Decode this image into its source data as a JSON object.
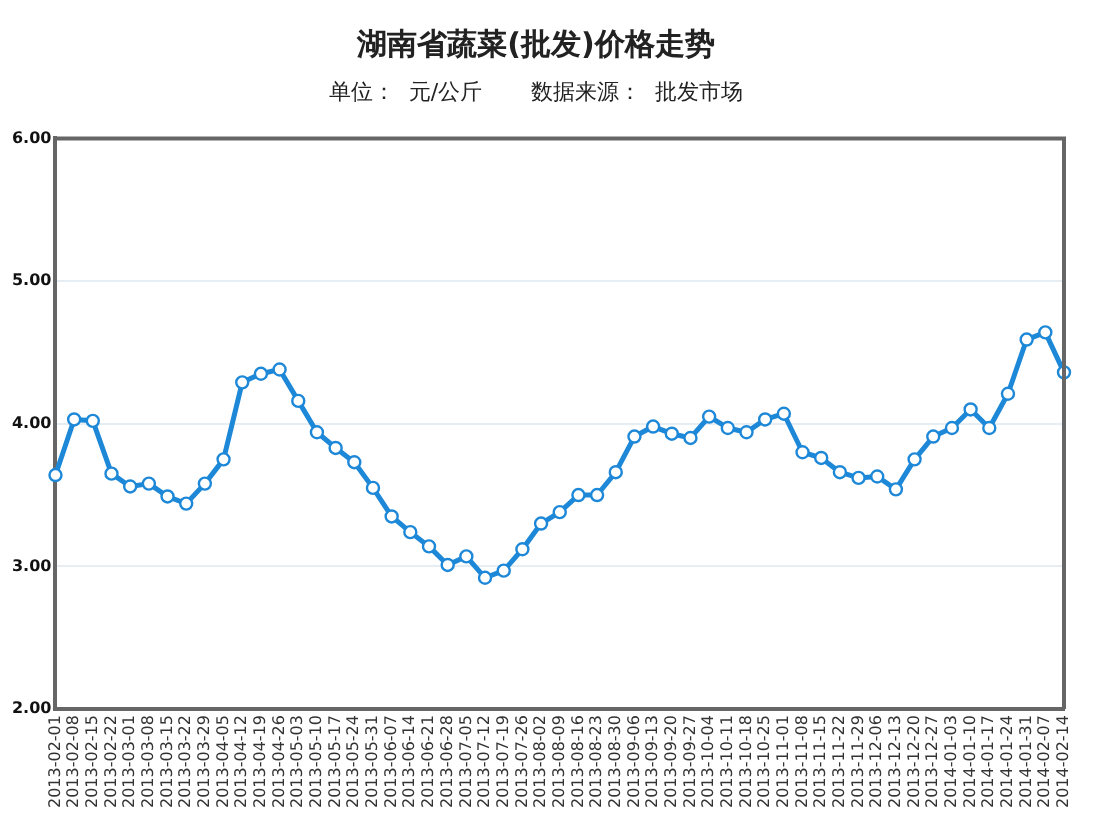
{
  "chart_data": {
    "type": "line",
    "title": "湖南省蔬菜(批发)价格走势",
    "subtitle": "单位：  元/公斤       数据来源：  批发市场",
    "categories": [
      "2013-02-01",
      "2013-02-08",
      "2013-02-15",
      "2013-02-22",
      "2013-03-01",
      "2013-03-08",
      "2013-03-15",
      "2013-03-22",
      "2013-03-29",
      "2013-04-05",
      "2013-04-12",
      "2013-04-19",
      "2013-04-26",
      "2013-05-03",
      "2013-05-10",
      "2013-05-17",
      "2013-05-24",
      "2013-05-31",
      "2013-06-07",
      "2013-06-14",
      "2013-06-21",
      "2013-06-28",
      "2013-07-05",
      "2013-07-12",
      "2013-07-19",
      "2013-07-26",
      "2013-08-02",
      "2013-08-09",
      "2013-08-16",
      "2013-08-23",
      "2013-08-30",
      "2013-09-06",
      "2013-09-13",
      "2013-09-20",
      "2013-09-27",
      "2013-10-04",
      "2013-10-11",
      "2013-10-18",
      "2013-10-25",
      "2013-11-01",
      "2013-11-08",
      "2013-11-15",
      "2013-11-22",
      "2013-11-29",
      "2013-12-06",
      "2013-12-13",
      "2013-12-20",
      "2013-12-27",
      "2014-01-03",
      "2014-01-10",
      "2014-01-17",
      "2014-01-24",
      "2014-01-31",
      "2014-02-07",
      "2014-02-14"
    ],
    "series": [
      {
        "color": "#1e88d8",
        "values": [
          3.64,
          4.03,
          4.02,
          3.65,
          3.56,
          3.58,
          3.49,
          3.44,
          3.58,
          3.75,
          4.29,
          4.35,
          4.38,
          4.16,
          3.94,
          3.83,
          3.73,
          3.55,
          3.35,
          3.24,
          3.14,
          3.01,
          3.07,
          2.92,
          2.97,
          3.12,
          3.3,
          3.38,
          3.5,
          3.5,
          3.66,
          3.91,
          3.98,
          3.93,
          3.9,
          4.05,
          3.97,
          3.94,
          4.03,
          4.07,
          3.8,
          3.76,
          3.66,
          3.62,
          3.63,
          3.54,
          3.75,
          3.91,
          3.97,
          4.1,
          3.97,
          4.21,
          4.59,
          4.64,
          4.36
        ]
      }
    ],
    "ylim": [
      2,
      6
    ],
    "yticks": [
      {
        "value": 2,
        "label": "2.00"
      },
      {
        "value": 3,
        "label": "3.00"
      },
      {
        "value": 4,
        "label": "4.00"
      },
      {
        "value": 5,
        "label": "5.00"
      },
      {
        "value": 6,
        "label": "6.00"
      }
    ],
    "grid": "y",
    "legend": false,
    "marker": "circle",
    "line_style": "solid"
  }
}
